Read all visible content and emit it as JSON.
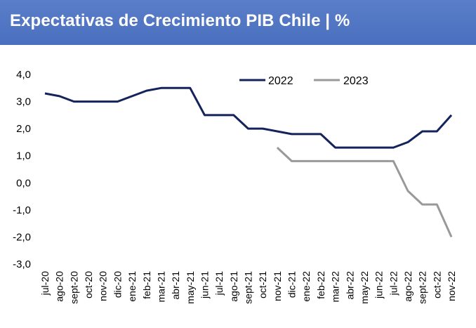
{
  "header": {
    "title": "Expectativas de Crecimiento PIB Chile | %"
  },
  "chart_data": {
    "type": "line",
    "title": "Expectativas de Crecimiento PIB Chile | %",
    "ylim": [
      -3.0,
      4.0
    ],
    "yticks": [
      "4,0",
      "3,0",
      "2,0",
      "1,0",
      "0,0",
      "-1,0",
      "-2,0",
      "-3,0"
    ],
    "grid": false,
    "legend_position": "top-right",
    "categories": [
      "jul-20",
      "ago-20",
      "sept-20",
      "oct-20",
      "nov-20",
      "dic-20",
      "ene-21",
      "feb-21",
      "mar-21",
      "abr-21",
      "may-21",
      "jun-21",
      "jul-21",
      "ago-21",
      "sept-21",
      "oct-21",
      "nov-21",
      "dic-21",
      "ene-22",
      "feb-22",
      "mar-22",
      "abr-22",
      "may-22",
      "jun-22",
      "jul-22",
      "ago-22",
      "sept-22",
      "oct-22",
      "nov-22"
    ],
    "series": [
      {
        "name": "2022",
        "color": "#14235c",
        "values": [
          3.3,
          3.2,
          3.0,
          3.0,
          3.0,
          3.0,
          3.2,
          3.4,
          3.5,
          3.5,
          3.5,
          2.5,
          2.5,
          2.5,
          2.0,
          2.0,
          1.9,
          1.8,
          1.8,
          1.8,
          1.3,
          1.3,
          1.3,
          1.3,
          1.3,
          1.5,
          1.9,
          1.9,
          2.5
        ]
      },
      {
        "name": "2023",
        "color": "#999999",
        "values": [
          null,
          null,
          null,
          null,
          null,
          null,
          null,
          null,
          null,
          null,
          null,
          null,
          null,
          null,
          null,
          null,
          1.3,
          0.8,
          0.8,
          0.8,
          0.8,
          0.8,
          0.8,
          0.8,
          0.8,
          -0.3,
          -0.8,
          -0.8,
          -2.0
        ]
      }
    ]
  }
}
